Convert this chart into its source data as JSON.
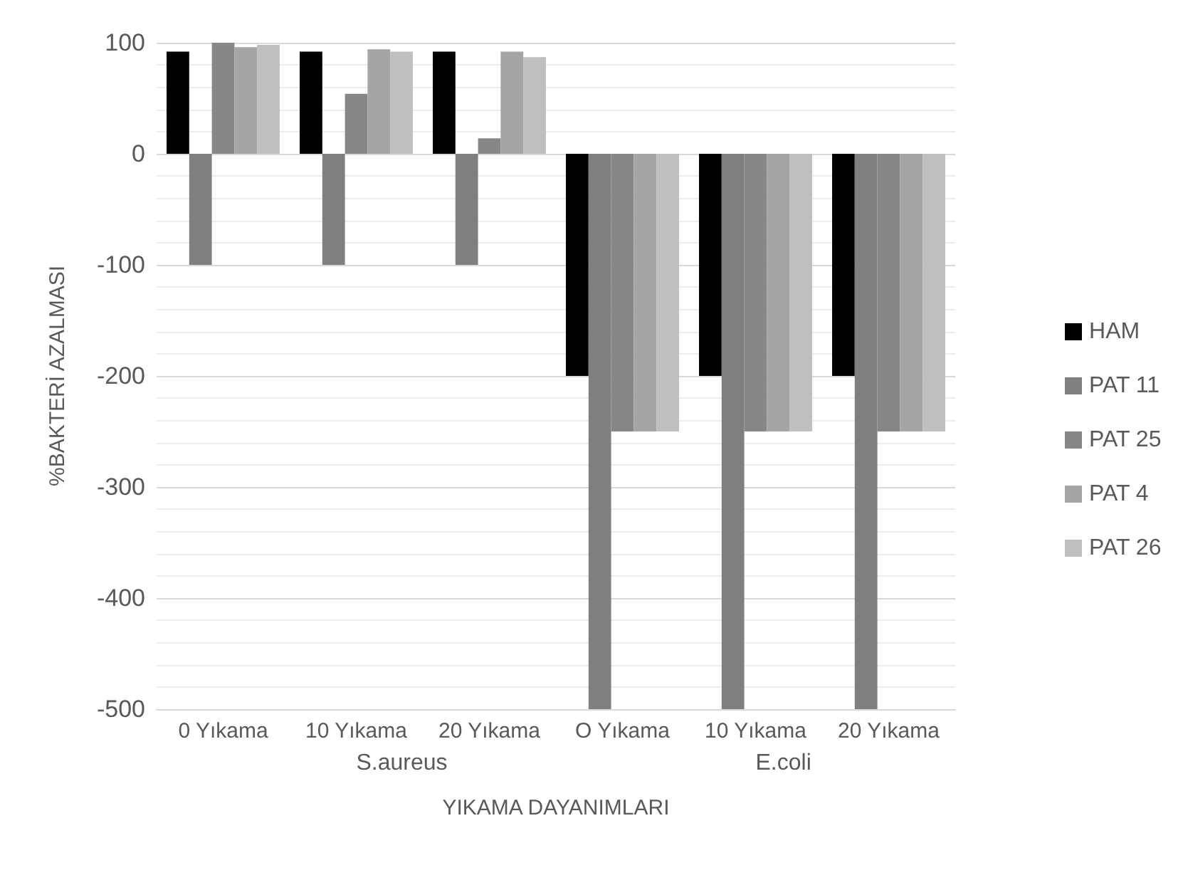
{
  "chart_data": {
    "type": "bar",
    "xlabel": "YIKAMA DAYANIMLARI",
    "ylabel": "%BAKTERİ AZALMASI",
    "categories": [
      "0 Yıkama",
      "10 Yıkama",
      "20 Yıkama",
      "O Yıkama",
      "10 Yıkama",
      "20 Yıkama"
    ],
    "annotations": [
      "S.aureus",
      "E.coli"
    ],
    "series": [
      {
        "name": "HAM",
        "color": "#000000",
        "values": [
          92,
          92,
          92,
          -200,
          -200,
          -200
        ]
      },
      {
        "name": "PAT 11",
        "color": "#7f7f7f",
        "values": [
          -100,
          -100,
          -100,
          -500,
          -500,
          -500
        ]
      },
      {
        "name": "PAT 25",
        "color": "#878787",
        "values": [
          100,
          54,
          14,
          -250,
          -250,
          -250
        ]
      },
      {
        "name": "PAT 4",
        "color": "#a5a5a5",
        "values": [
          96,
          94,
          92,
          -250,
          -250,
          -250
        ]
      },
      {
        "name": "PAT 26",
        "color": "#bfbfbf",
        "values": [
          98,
          92,
          87,
          -250,
          -250,
          -250
        ]
      }
    ],
    "ylim": [
      -500,
      100
    ],
    "yticks": [
      -500,
      -400,
      -300,
      -200,
      -100,
      0,
      100
    ],
    "grid": true,
    "legend": "right"
  }
}
